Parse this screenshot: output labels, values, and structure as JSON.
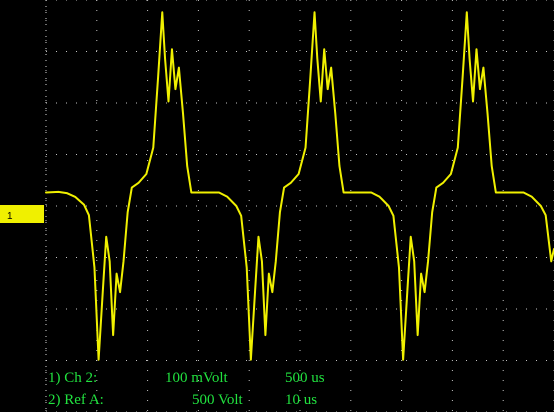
{
  "screen": {
    "background": "#000000",
    "grid_color": "#d8d8d8",
    "trace_color": "#f0f000",
    "label_color": "#21e23f"
  },
  "markers": {
    "channel_marker": "1"
  },
  "readouts": [
    {
      "prefix": "1) Ch 2:",
      "scale": "100 mVolt",
      "time": "500 us"
    },
    {
      "prefix": "2) Ref A:",
      "scale": "500 Volt",
      "time": "10 us"
    }
  ],
  "chart_data": {
    "type": "line",
    "title": "",
    "xlabel": "",
    "ylabel": "",
    "series": [
      {
        "name": "",
        "points": [
          [
            0.0,
            0.02
          ],
          [
            0.18,
            0.03
          ],
          [
            0.3,
            0.01
          ],
          [
            0.42,
            -0.05
          ],
          [
            0.55,
            -0.18
          ],
          [
            0.62,
            -0.35
          ],
          [
            0.7,
            -1.2
          ],
          [
            0.76,
            -2.7
          ],
          [
            0.82,
            -1.6
          ],
          [
            0.87,
            -0.7
          ],
          [
            0.92,
            -1.1
          ],
          [
            0.97,
            -2.3
          ],
          [
            1.02,
            -1.3
          ],
          [
            1.07,
            -1.6
          ],
          [
            1.12,
            -1.1
          ],
          [
            1.18,
            -0.3
          ],
          [
            1.24,
            0.1
          ],
          [
            1.34,
            0.18
          ],
          [
            1.45,
            0.32
          ],
          [
            1.55,
            0.75
          ],
          [
            1.62,
            1.9
          ],
          [
            1.68,
            2.95
          ],
          [
            1.72,
            2.2
          ],
          [
            1.77,
            1.5
          ],
          [
            1.82,
            2.35
          ],
          [
            1.87,
            1.7
          ],
          [
            1.92,
            2.05
          ],
          [
            1.98,
            1.3
          ],
          [
            2.04,
            0.45
          ],
          [
            2.1,
            0.02
          ],
          [
            2.5,
            0.02
          ],
          [
            2.62,
            -0.05
          ],
          [
            2.75,
            -0.2
          ],
          [
            2.82,
            -0.36
          ],
          [
            2.9,
            -1.2
          ],
          [
            2.96,
            -2.7
          ],
          [
            3.02,
            -1.6
          ],
          [
            3.07,
            -0.7
          ],
          [
            3.12,
            -1.1
          ],
          [
            3.17,
            -2.3
          ],
          [
            3.22,
            -1.3
          ],
          [
            3.27,
            -1.6
          ],
          [
            3.32,
            -1.1
          ],
          [
            3.38,
            -0.3
          ],
          [
            3.44,
            0.1
          ],
          [
            3.54,
            0.18
          ],
          [
            3.65,
            0.32
          ],
          [
            3.75,
            0.75
          ],
          [
            3.82,
            1.9
          ],
          [
            3.88,
            2.95
          ],
          [
            3.92,
            2.2
          ],
          [
            3.97,
            1.5
          ],
          [
            4.02,
            2.35
          ],
          [
            4.07,
            1.7
          ],
          [
            4.12,
            2.05
          ],
          [
            4.18,
            1.3
          ],
          [
            4.24,
            0.45
          ],
          [
            4.3,
            0.02
          ],
          [
            4.7,
            0.02
          ],
          [
            4.82,
            -0.05
          ],
          [
            4.95,
            -0.2
          ],
          [
            5.02,
            -0.36
          ],
          [
            5.1,
            -1.2
          ],
          [
            5.16,
            -2.7
          ],
          [
            5.22,
            -1.6
          ],
          [
            5.27,
            -0.7
          ],
          [
            5.32,
            -1.1
          ],
          [
            5.37,
            -2.3
          ],
          [
            5.42,
            -1.3
          ],
          [
            5.47,
            -1.6
          ],
          [
            5.52,
            -1.1
          ],
          [
            5.58,
            -0.3
          ],
          [
            5.64,
            0.1
          ],
          [
            5.74,
            0.18
          ],
          [
            5.85,
            0.32
          ],
          [
            5.95,
            0.75
          ],
          [
            6.02,
            1.9
          ],
          [
            6.08,
            2.95
          ],
          [
            6.12,
            2.2
          ],
          [
            6.17,
            1.5
          ],
          [
            6.22,
            2.35
          ],
          [
            6.27,
            1.7
          ],
          [
            6.32,
            2.05
          ],
          [
            6.38,
            1.3
          ],
          [
            6.44,
            0.45
          ],
          [
            6.5,
            0.02
          ],
          [
            6.9,
            0.02
          ],
          [
            7.02,
            -0.05
          ],
          [
            7.15,
            -0.2
          ],
          [
            7.22,
            -0.35
          ],
          [
            7.3,
            -1.1
          ],
          [
            7.34,
            -0.9
          ]
        ]
      }
    ],
    "xlim": [
      0,
      7.34
    ],
    "ylim": [
      -3.55,
      3.15
    ],
    "grid": true,
    "legend": "none",
    "x_divisions": 10,
    "y_divisions": 8
  }
}
